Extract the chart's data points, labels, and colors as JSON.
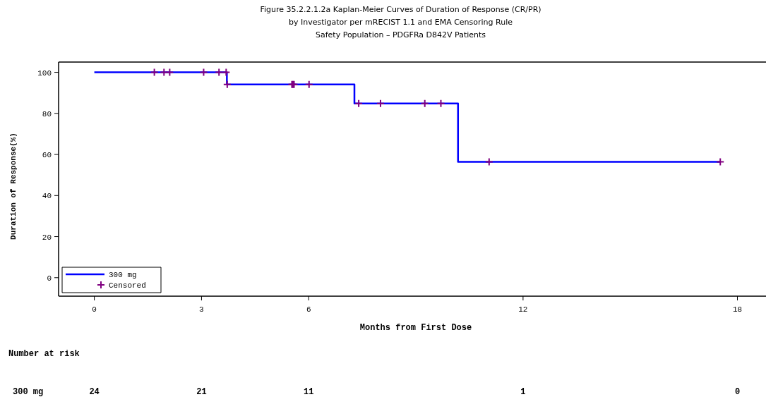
{
  "chart_data": {
    "type": "step",
    "title": "Figure 35.2.2.1.2a Kaplan-Meier Curves of Duration of Response (CR/PR)\nby Investigator per mRECIST 1.1 and EMA Censoring Rule",
    "subtitle": "Safety Population – PDGFRa D842V Patients",
    "xlabel": "Months from First Dose",
    "ylabel": "Duration of Response(%)",
    "xlim": [
      -1,
      18.8
    ],
    "xticks": [
      0,
      3,
      6,
      12,
      18
    ],
    "ylim": [
      -9,
      105
    ],
    "yticks": [
      0,
      20,
      40,
      60,
      80,
      100
    ],
    "grid": false,
    "legend": "bottom left",
    "series": [
      {
        "name": "300 mg",
        "type": "step",
        "color": "#0000ff",
        "marker": "none",
        "x": [
          0,
          3.71,
          7.28,
          10.18,
          17.52
        ],
        "values": [
          100,
          94.1,
          84.8,
          56.4,
          56.4
        ]
      },
      {
        "name": "Censored",
        "type": "scatter",
        "color": "#800080",
        "marker": "cross",
        "x": [
          1.68,
          1.95,
          2.11,
          3.06,
          3.49,
          3.69,
          3.72,
          5.53,
          5.56,
          5.59,
          6.01,
          7.4,
          8.01,
          9.25,
          9.7,
          11.05,
          17.52
        ],
        "values": [
          100,
          100,
          100,
          100,
          100,
          100,
          94.1,
          94.1,
          94.1,
          94.1,
          94.1,
          84.8,
          84.8,
          84.8,
          84.8,
          56.4,
          56.4
        ]
      }
    ],
    "annotations": [
      "Number at risk",
      "24",
      "21",
      "11",
      "1",
      "0"
    ]
  }
}
